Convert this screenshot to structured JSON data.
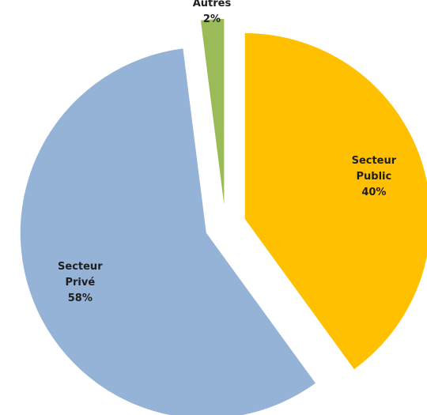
{
  "chart_data": {
    "type": "pie",
    "categories": [
      "Secteur Public",
      "Secteur Privé",
      "Autres"
    ],
    "values": [
      40,
      58,
      2
    ],
    "value_labels": [
      "40%",
      "58%",
      "2%"
    ],
    "colors": [
      "#ffc000",
      "#95b3d7",
      "#9bbb59"
    ]
  }
}
